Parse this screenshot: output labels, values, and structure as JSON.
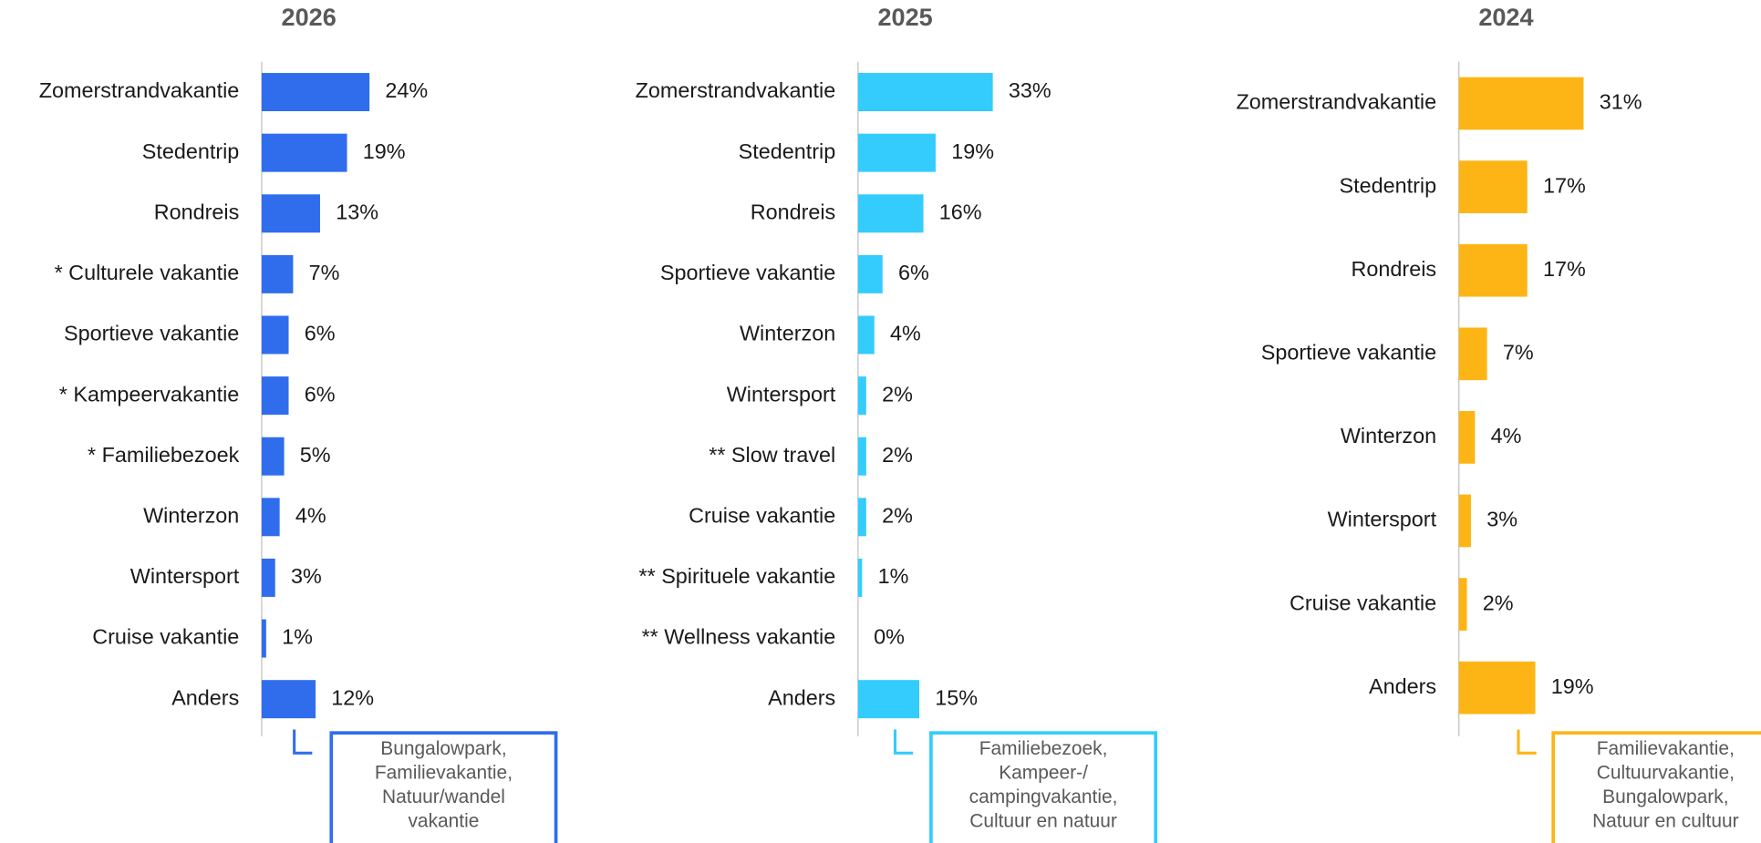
{
  "chart_data": [
    {
      "type": "barh",
      "title": "2026",
      "color": "#2f6ded",
      "xlim": [
        0,
        60
      ],
      "categories": [
        "Zomerstrandvakantie",
        "Stedentrip",
        "Rondreis",
        "* Culturele vakantie",
        "Sportieve vakantie",
        "* Kampeervakantie",
        "* Familiebezoek",
        "Winterzon",
        "Wintersport",
        "Cruise vakantie",
        "Anders"
      ],
      "values": [
        24,
        19,
        13,
        7,
        6,
        6,
        5,
        4,
        3,
        1,
        12
      ],
      "value_labels": [
        "24%",
        "19%",
        "13%",
        "7%",
        "6%",
        "6%",
        "5%",
        "4%",
        "3%",
        "1%",
        "12%"
      ],
      "annotation": [
        "Bungalowpark,",
        "Familievakantie,",
        "Natuur/wandel",
        "vakantie"
      ]
    },
    {
      "type": "barh",
      "title": "2025",
      "color": "#33ccfd",
      "xlim": [
        0,
        66
      ],
      "categories": [
        "Zomerstrandvakantie",
        "Stedentrip",
        "Rondreis",
        "Sportieve vakantie",
        "Winterzon",
        "Wintersport",
        "** Slow travel",
        "Cruise vakantie",
        "** Spirituele vakantie",
        "** Wellness vakantie",
        "Anders"
      ],
      "values": [
        33,
        19,
        16,
        6,
        4,
        2,
        2,
        2,
        1,
        0,
        15
      ],
      "value_labels": [
        "33%",
        "19%",
        "16%",
        "6%",
        "4%",
        "2%",
        "2%",
        "2%",
        "1%",
        "0%",
        "15%"
      ],
      "annotation": [
        "Familiebezoek,",
        "Kampeer-/",
        "campingvakantie,",
        "Cultuur en natuur"
      ]
    },
    {
      "type": "barh",
      "title": "2024",
      "color": "#fdb515",
      "xlim": [
        0,
        67
      ],
      "categories": [
        "Zomerstrandvakantie",
        "Stedentrip",
        "Rondreis",
        "Sportieve vakantie",
        "Winterzon",
        "Wintersport",
        "Cruise vakantie",
        "Anders"
      ],
      "values": [
        31,
        17,
        17,
        7,
        4,
        3,
        2,
        19
      ],
      "value_labels": [
        "31%",
        "17%",
        "17%",
        "7%",
        "4%",
        "3%",
        "2%",
        "19%"
      ],
      "annotation": [
        "Familievakantie,",
        "Cultuurvakantie,",
        "Bungalowpark,",
        "Natuur en cultuur"
      ]
    }
  ]
}
